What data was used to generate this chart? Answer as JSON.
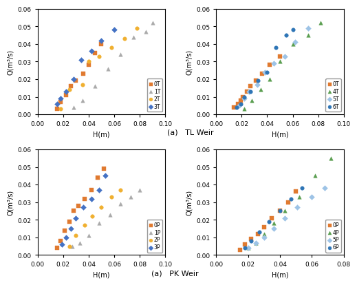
{
  "tl_left": {
    "series": [
      {
        "label": "0T",
        "color": "#E07A30",
        "marker": "s",
        "x": [
          0.015,
          0.018,
          0.022,
          0.026,
          0.03,
          0.036,
          0.04,
          0.045,
          0.05
        ],
        "y": [
          0.003,
          0.007,
          0.011,
          0.016,
          0.019,
          0.023,
          0.028,
          0.035,
          0.04
        ]
      },
      {
        "label": "1T",
        "color": "#AAAAAA",
        "marker": "^",
        "x": [
          0.028,
          0.035,
          0.045,
          0.055,
          0.065,
          0.075,
          0.085,
          0.09
        ],
        "y": [
          0.004,
          0.008,
          0.016,
          0.026,
          0.034,
          0.044,
          0.047,
          0.052
        ]
      },
      {
        "label": "2T",
        "color": "#F0B030",
        "marker": "o",
        "x": [
          0.018,
          0.025,
          0.035,
          0.04,
          0.048,
          0.058,
          0.068,
          0.078
        ],
        "y": [
          0.003,
          0.014,
          0.017,
          0.03,
          0.033,
          0.038,
          0.043,
          0.049
        ]
      },
      {
        "label": "3T",
        "color": "#4472C4",
        "marker": "D",
        "x": [
          0.015,
          0.018,
          0.022,
          0.028,
          0.034,
          0.042,
          0.05,
          0.06
        ],
        "y": [
          0.006,
          0.009,
          0.013,
          0.02,
          0.031,
          0.036,
          0.042,
          0.048
        ]
      }
    ],
    "xlabel": "H(m)",
    "ylabel": "Q(m³/s)",
    "xlim": [
      0,
      0.1
    ],
    "ylim": [
      0,
      0.06
    ],
    "xticks": [
      0,
      0.02,
      0.04,
      0.06,
      0.08,
      0.1
    ],
    "yticks": [
      0,
      0.01,
      0.02,
      0.03,
      0.04,
      0.05,
      0.06
    ]
  },
  "tl_right": {
    "series": [
      {
        "label": "0T",
        "color": "#E07A30",
        "marker": "s",
        "x": [
          0.014,
          0.017,
          0.019,
          0.021,
          0.024,
          0.027,
          0.031,
          0.036,
          0.042,
          0.05
        ],
        "y": [
          0.004,
          0.006,
          0.008,
          0.01,
          0.013,
          0.016,
          0.019,
          0.023,
          0.028,
          0.033
        ]
      },
      {
        "label": "4T",
        "color": "#5A9E50",
        "marker": "^",
        "x": [
          0.022,
          0.028,
          0.035,
          0.042,
          0.05,
          0.06,
          0.072,
          0.082
        ],
        "y": [
          0.003,
          0.008,
          0.014,
          0.02,
          0.03,
          0.04,
          0.045,
          0.052
        ]
      },
      {
        "label": "5T",
        "color": "#9DC3E6",
        "marker": "D",
        "x": [
          0.018,
          0.022,
          0.026,
          0.032,
          0.038,
          0.045,
          0.054,
          0.062,
          0.072
        ],
        "y": [
          0.005,
          0.009,
          0.013,
          0.017,
          0.024,
          0.029,
          0.033,
          0.041,
          0.049
        ]
      },
      {
        "label": "6T",
        "color": "#2E75B6",
        "marker": "o",
        "x": [
          0.016,
          0.019,
          0.022,
          0.027,
          0.033,
          0.04,
          0.047,
          0.055,
          0.06
        ],
        "y": [
          0.004,
          0.006,
          0.01,
          0.013,
          0.019,
          0.024,
          0.038,
          0.045,
          0.048
        ]
      }
    ],
    "xlabel": "H(m)",
    "ylabel": "Q(m³/s)",
    "xlim": [
      0,
      0.1
    ],
    "ylim": [
      0,
      0.06
    ],
    "xticks": [
      0,
      0.02,
      0.04,
      0.06,
      0.08,
      0.1
    ],
    "yticks": [
      0,
      0.01,
      0.02,
      0.03,
      0.04,
      0.05,
      0.06
    ]
  },
  "pk_left": {
    "series": [
      {
        "label": "0P",
        "color": "#E07A30",
        "marker": "s",
        "x": [
          0.015,
          0.018,
          0.021,
          0.025,
          0.028,
          0.032,
          0.037,
          0.042,
          0.047,
          0.052
        ],
        "y": [
          0.004,
          0.008,
          0.014,
          0.019,
          0.025,
          0.028,
          0.032,
          0.037,
          0.044,
          0.049
        ]
      },
      {
        "label": "1P",
        "color": "#AAAAAA",
        "marker": "^",
        "x": [
          0.027,
          0.033,
          0.04,
          0.048,
          0.057,
          0.065,
          0.073,
          0.08
        ],
        "y": [
          0.005,
          0.007,
          0.011,
          0.018,
          0.023,
          0.029,
          0.033,
          0.037
        ]
      },
      {
        "label": "2P",
        "color": "#F0B030",
        "marker": "o",
        "x": [
          0.025,
          0.03,
          0.037,
          0.043,
          0.05,
          0.058,
          0.065
        ],
        "y": [
          0.005,
          0.011,
          0.017,
          0.022,
          0.027,
          0.033,
          0.037
        ]
      },
      {
        "label": "3P",
        "color": "#4472C4",
        "marker": "D",
        "x": [
          0.019,
          0.022,
          0.026,
          0.03,
          0.036,
          0.042,
          0.048,
          0.053
        ],
        "y": [
          0.006,
          0.01,
          0.015,
          0.021,
          0.027,
          0.032,
          0.037,
          0.045
        ]
      }
    ],
    "xlabel": "H(m)",
    "ylabel": "Q(m³/s)",
    "xlim": [
      0,
      0.1
    ],
    "ylim": [
      0,
      0.06
    ],
    "xticks": [
      0,
      0.02,
      0.04,
      0.06,
      0.08,
      0.1
    ],
    "yticks": [
      0,
      0.01,
      0.02,
      0.03,
      0.04,
      0.05,
      0.06
    ]
  },
  "pk_right": {
    "series": [
      {
        "label": "0P",
        "color": "#E07A30",
        "marker": "s",
        "x": [
          0.015,
          0.018,
          0.022,
          0.026,
          0.03,
          0.035,
          0.04,
          0.045,
          0.05
        ],
        "y": [
          0.003,
          0.006,
          0.009,
          0.012,
          0.016,
          0.021,
          0.025,
          0.03,
          0.036
        ]
      },
      {
        "label": "4P",
        "color": "#5A9E50",
        "marker": "^",
        "x": [
          0.02,
          0.025,
          0.03,
          0.036,
          0.043,
          0.052,
          0.062,
          0.072
        ],
        "y": [
          0.004,
          0.007,
          0.012,
          0.018,
          0.025,
          0.033,
          0.045,
          0.055
        ]
      },
      {
        "label": "5P",
        "color": "#9DC3E6",
        "marker": "D",
        "x": [
          0.02,
          0.025,
          0.03,
          0.036,
          0.043,
          0.051,
          0.06,
          0.068
        ],
        "y": [
          0.004,
          0.007,
          0.01,
          0.015,
          0.021,
          0.027,
          0.033,
          0.038
        ]
      },
      {
        "label": "6P",
        "color": "#2E75B6",
        "marker": "o",
        "x": [
          0.018,
          0.022,
          0.027,
          0.033,
          0.04,
          0.047,
          0.054
        ],
        "y": [
          0.004,
          0.008,
          0.013,
          0.019,
          0.025,
          0.032,
          0.038
        ]
      }
    ],
    "xlabel": "H(m)",
    "ylabel": "Q(m³/s)",
    "xlim": [
      0,
      0.08
    ],
    "ylim": [
      0,
      0.06
    ],
    "xticks": [
      0,
      0.02,
      0.04,
      0.06,
      0.08
    ],
    "yticks": [
      0,
      0.01,
      0.02,
      0.03,
      0.04,
      0.05,
      0.06
    ]
  },
  "caption_top": "(a)   TL Weir",
  "caption_bottom": "(a)   PK Weir"
}
